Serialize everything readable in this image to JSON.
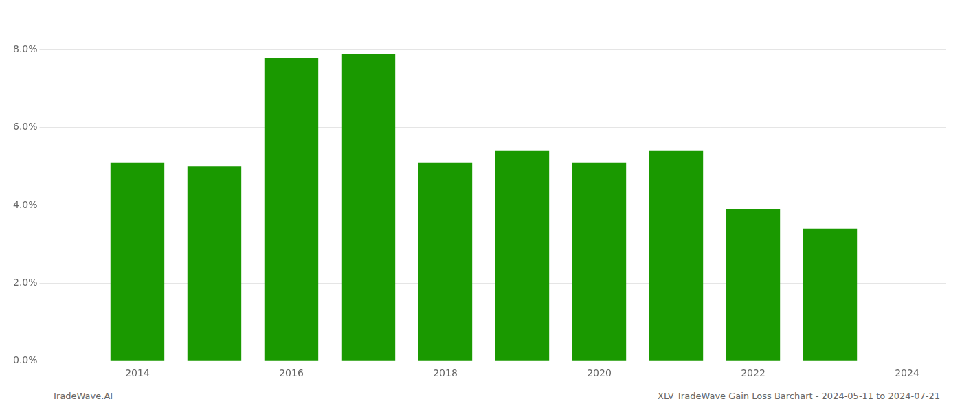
{
  "chart_data": {
    "type": "bar",
    "x": [
      2014,
      2015,
      2016,
      2017,
      2018,
      2019,
      2020,
      2021,
      2022,
      2023
    ],
    "values": [
      0.051,
      0.05,
      0.078,
      0.079,
      0.051,
      0.054,
      0.051,
      0.054,
      0.039,
      0.034
    ],
    "color": "#1a9900",
    "xlim": [
      2012.8,
      2024.5
    ],
    "xticks": [
      2014,
      2016,
      2018,
      2020,
      2022,
      2024
    ],
    "ylim": [
      0.0,
      0.088
    ],
    "yticks": [
      {
        "value": 0.0,
        "label": "0.0%"
      },
      {
        "value": 0.02,
        "label": "2.0%"
      },
      {
        "value": 0.04,
        "label": "4.0%"
      },
      {
        "value": 0.06,
        "label": "6.0%"
      },
      {
        "value": 0.08,
        "label": "8.0%"
      }
    ],
    "grid": "y",
    "annotations": [
      "TradeWave.AI",
      "XLV TradeWave Gain Loss Barchart - 2024-05-11 to 2024-07-21"
    ]
  }
}
